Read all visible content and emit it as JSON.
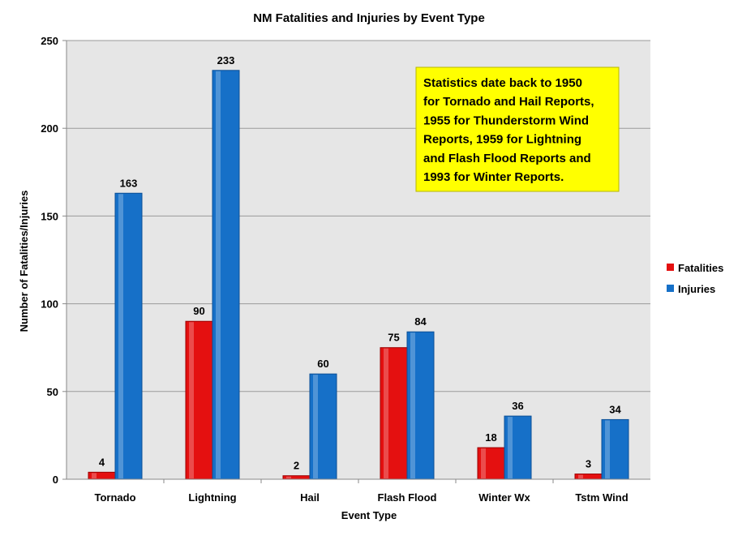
{
  "chart_data": {
    "type": "bar",
    "title": "NM Fatalities and Injuries by Event Type",
    "xlabel": "Event Type",
    "ylabel": "Number of Fatalities/Injuries",
    "categories": [
      "Tornado",
      "Lightning",
      "Hail",
      "Flash Flood",
      "Winter Wx",
      "Tstm Wind"
    ],
    "series": [
      {
        "name": "Fatalities",
        "color": "#e41010",
        "values": [
          4,
          90,
          2,
          75,
          18,
          3
        ]
      },
      {
        "name": "Injuries",
        "color": "#1670c8",
        "values": [
          163,
          233,
          60,
          84,
          36,
          34
        ]
      }
    ],
    "ylim": [
      0,
      250
    ],
    "yticks": [
      0,
      50,
      100,
      150,
      200,
      250
    ],
    "grid": true,
    "legend": "right",
    "data_labels": true,
    "annotation": {
      "lines": [
        "Statistics date back to 1950",
        "for Tornado and Hail Reports,",
        "1955 for Thunderstorm Wind",
        "Reports, 1959 for Lightning",
        "and Flash Flood Reports and",
        "1993 for Winter Reports."
      ],
      "background": "#ffff00"
    },
    "plot_background": "#e6e6e6"
  }
}
